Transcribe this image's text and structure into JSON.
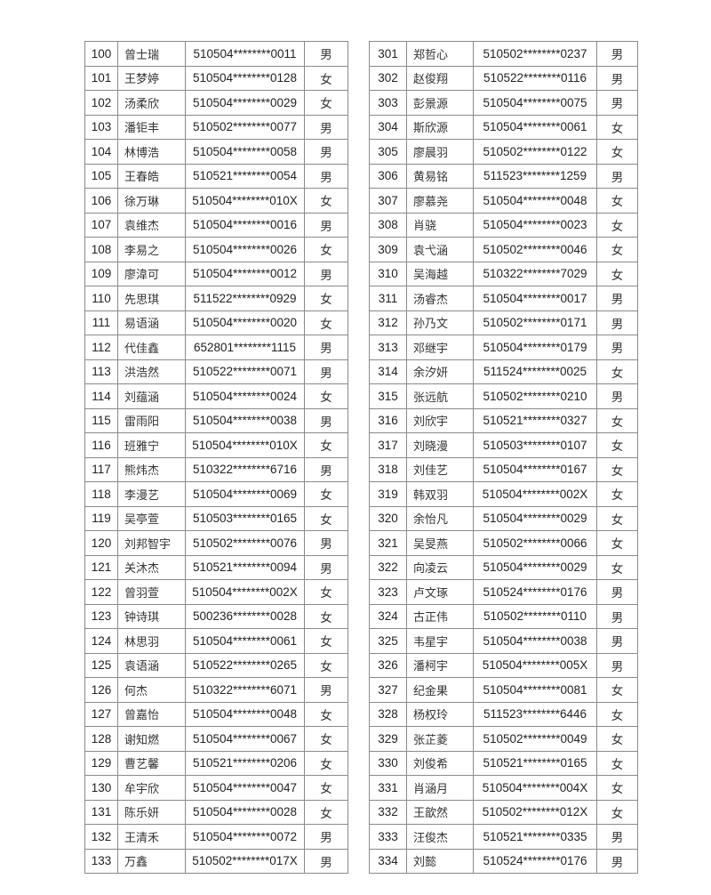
{
  "left_table": [
    [
      "100",
      "曾士瑞",
      "510504********0011",
      "男"
    ],
    [
      "101",
      "王梦婷",
      "510504********0128",
      "女"
    ],
    [
      "102",
      "汤柔欣",
      "510504********0029",
      "女"
    ],
    [
      "103",
      "潘钜丰",
      "510502********0077",
      "男"
    ],
    [
      "104",
      "林博浩",
      "510504********0058",
      "男"
    ],
    [
      "105",
      "王春皓",
      "510521********0054",
      "男"
    ],
    [
      "106",
      "徐万琳",
      "510504********010X",
      "女"
    ],
    [
      "107",
      "袁维杰",
      "510504********0016",
      "男"
    ],
    [
      "108",
      "李易之",
      "510504********0026",
      "女"
    ],
    [
      "109",
      "廖湋可",
      "510504********0012",
      "男"
    ],
    [
      "110",
      "先思琪",
      "511522********0929",
      "女"
    ],
    [
      "111",
      "易语涵",
      "510504********0020",
      "女"
    ],
    [
      "112",
      "代佳鑫",
      "652801********1115",
      "男"
    ],
    [
      "113",
      "洪浩然",
      "510522********0071",
      "男"
    ],
    [
      "114",
      "刘蕴涵",
      "510504********0024",
      "女"
    ],
    [
      "115",
      "雷雨阳",
      "510504********0038",
      "男"
    ],
    [
      "116",
      "班雅宁",
      "510504********010X",
      "女"
    ],
    [
      "117",
      "熊炜杰",
      "510322********6716",
      "男"
    ],
    [
      "118",
      "李漫艺",
      "510504********0069",
      "女"
    ],
    [
      "119",
      "吴亭萱",
      "510503********0165",
      "女"
    ],
    [
      "120",
      "刘邦智宇",
      "510502********0076",
      "男"
    ],
    [
      "121",
      "关沐杰",
      "510521********0094",
      "男"
    ],
    [
      "122",
      "曾羽萱",
      "510504********002X",
      "女"
    ],
    [
      "123",
      "钟诗琪",
      "500236********0028",
      "女"
    ],
    [
      "124",
      "林思羽",
      "510504********0061",
      "女"
    ],
    [
      "125",
      "袁语涵",
      "510522********0265",
      "女"
    ],
    [
      "126",
      "何杰",
      "510322********6071",
      "男"
    ],
    [
      "127",
      "曾嘉怡",
      "510504********0048",
      "女"
    ],
    [
      "128",
      "谢知燃",
      "510504********0067",
      "女"
    ],
    [
      "129",
      "曹艺馨",
      "510521********0206",
      "女"
    ],
    [
      "130",
      "牟宇欣",
      "510504********0047",
      "女"
    ],
    [
      "131",
      "陈乐妍",
      "510504********0028",
      "女"
    ],
    [
      "132",
      "王清禾",
      "510504********0072",
      "男"
    ],
    [
      "133",
      "万鑫",
      "510502********017X",
      "男"
    ]
  ],
  "right_table": [
    [
      "301",
      "郑哲心",
      "510502********0237",
      "男"
    ],
    [
      "302",
      "赵俊翔",
      "510522********0116",
      "男"
    ],
    [
      "303",
      "彭景源",
      "510504********0075",
      "男"
    ],
    [
      "304",
      "斯欣源",
      "510504********0061",
      "女"
    ],
    [
      "305",
      "廖晨羽",
      "510502********0122",
      "女"
    ],
    [
      "306",
      "黄易铭",
      "511523********1259",
      "男"
    ],
    [
      "307",
      "廖慕尧",
      "510504********0048",
      "女"
    ],
    [
      "308",
      "肖骁",
      "510504********0023",
      "女"
    ],
    [
      "309",
      "袁弋涵",
      "510502********0046",
      "女"
    ],
    [
      "310",
      "吴海越",
      "510322********7029",
      "女"
    ],
    [
      "311",
      "汤睿杰",
      "510504********0017",
      "男"
    ],
    [
      "312",
      "孙乃文",
      "510502********0171",
      "男"
    ],
    [
      "313",
      "邓继宇",
      "510504********0179",
      "男"
    ],
    [
      "314",
      "余汐妍",
      "511524********0025",
      "女"
    ],
    [
      "315",
      "张远航",
      "510502********0210",
      "男"
    ],
    [
      "316",
      "刘欣宇",
      "510521********0327",
      "女"
    ],
    [
      "317",
      "刘晓漫",
      "510503********0107",
      "女"
    ],
    [
      "318",
      "刘佳艺",
      "510504********0167",
      "女"
    ],
    [
      "319",
      "韩双羽",
      "510504********002X",
      "女"
    ],
    [
      "320",
      "余怡凡",
      "510504********0029",
      "女"
    ],
    [
      "321",
      "吴旻燕",
      "510502********0066",
      "女"
    ],
    [
      "322",
      "向凌云",
      "510504********0029",
      "女"
    ],
    [
      "323",
      "卢文琢",
      "510524********0176",
      "男"
    ],
    [
      "324",
      "古正伟",
      "510502********0110",
      "男"
    ],
    [
      "325",
      "韦星宇",
      "510504********0038",
      "男"
    ],
    [
      "326",
      "潘柯宇",
      "510504********005X",
      "男"
    ],
    [
      "327",
      "纪金果",
      "510504********0081",
      "女"
    ],
    [
      "328",
      "杨权玲",
      "511523********6446",
      "女"
    ],
    [
      "329",
      "张芷菱",
      "510502********0049",
      "女"
    ],
    [
      "330",
      "刘俊希",
      "510521********0165",
      "女"
    ],
    [
      "331",
      "肖涵月",
      "510504********004X",
      "女"
    ],
    [
      "332",
      "王歆然",
      "510502********012X",
      "女"
    ],
    [
      "333",
      "汪俊杰",
      "510521********0335",
      "男"
    ],
    [
      "334",
      "刘懿",
      "510524********0176",
      "男"
    ]
  ]
}
